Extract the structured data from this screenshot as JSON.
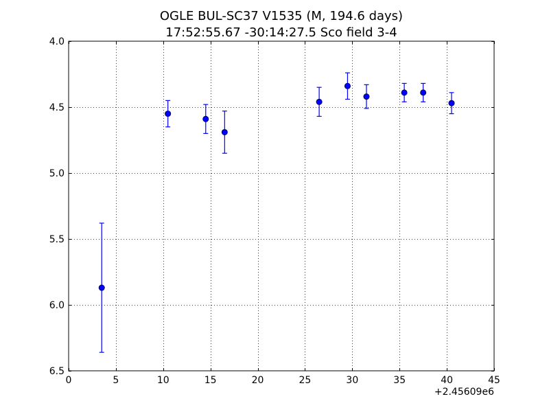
{
  "title": {
    "line1": "OGLE BUL-SC37 V1535  (M, 194.6 days)",
    "line2": "17:52:55.67 -30:14:27.5 Sco field 3-4"
  },
  "chart_data": {
    "type": "scatter",
    "title": "OGLE BUL-SC37 V1535  (M, 194.6 days)",
    "subtitle": "17:52:55.67 -30:14:27.5 Sco field 3-4",
    "xlabel": "",
    "ylabel": "",
    "x_offset_label": "+2.45609e6",
    "xlim": [
      0,
      45
    ],
    "ylim": [
      4.0,
      6.5
    ],
    "y_inverted": true,
    "x_ticks": [
      0,
      5,
      10,
      15,
      20,
      25,
      30,
      35,
      40,
      45
    ],
    "x_tick_labels": [
      "0",
      "5",
      "10",
      "15",
      "20",
      "25",
      "30",
      "35",
      "40",
      "45"
    ],
    "y_ticks": [
      4.0,
      4.5,
      5.0,
      5.5,
      6.0,
      6.5
    ],
    "y_tick_labels": [
      "4.0",
      "4.5",
      "5.0",
      "5.5",
      "6.0",
      "6.5"
    ],
    "grid": true,
    "marker_color": "#0000ff",
    "points": [
      {
        "x": 3.5,
        "y": 5.87,
        "err": 0.49
      },
      {
        "x": 10.5,
        "y": 4.55,
        "err": 0.1
      },
      {
        "x": 14.5,
        "y": 4.59,
        "err": 0.11
      },
      {
        "x": 16.5,
        "y": 4.69,
        "err": 0.16
      },
      {
        "x": 26.5,
        "y": 4.46,
        "err": 0.11
      },
      {
        "x": 29.5,
        "y": 4.34,
        "err": 0.1
      },
      {
        "x": 31.5,
        "y": 4.42,
        "err": 0.09
      },
      {
        "x": 35.5,
        "y": 4.39,
        "err": 0.07
      },
      {
        "x": 37.5,
        "y": 4.39,
        "err": 0.07
      },
      {
        "x": 40.5,
        "y": 4.47,
        "err": 0.08
      }
    ]
  }
}
